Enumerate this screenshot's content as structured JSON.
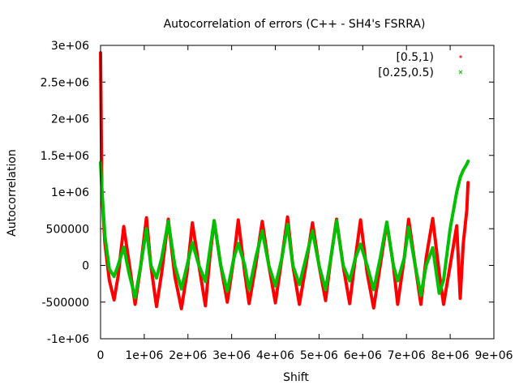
{
  "chart_data": {
    "type": "scatter",
    "title": "Autocorrelation of errors (C++ - SH4's FSRRA)",
    "xlabel": "Shift",
    "ylabel": "Autocorrelation",
    "xlim": [
      0,
      9000000
    ],
    "ylim": [
      -1000000,
      3000000
    ],
    "xticks": [
      0,
      1000000,
      2000000,
      3000000,
      4000000,
      5000000,
      6000000,
      7000000,
      8000000,
      9000000
    ],
    "xtick_labels": [
      "0",
      "1e+06",
      "2e+06",
      "3e+06",
      "4e+06",
      "5e+06",
      "6e+06",
      "7e+06",
      "8e+06",
      "9e+06"
    ],
    "yticks": [
      -1000000,
      -500000,
      0,
      500000,
      1000000,
      1500000,
      2000000,
      2500000,
      3000000
    ],
    "ytick_labels": [
      "-1e+06",
      "-500000",
      "0",
      "500000",
      "1e+06",
      "1.5e+06",
      "2e+06",
      "2.5e+06",
      "3e+06"
    ],
    "grid": false,
    "legend_position": "top-right",
    "series": [
      {
        "name": "[0.5,1)",
        "color": "#ff0000",
        "marker": "plus",
        "x": [
          0,
          30000,
          100000,
          200000,
          310000,
          400000,
          530000,
          650000,
          790000,
          920000,
          1050000,
          1150000,
          1280000,
          1400000,
          1550000,
          1700000,
          1850000,
          1980000,
          2100000,
          2250000,
          2400000,
          2500000,
          2600000,
          2750000,
          2900000,
          3050000,
          3150000,
          3300000,
          3400000,
          3550000,
          3700000,
          3850000,
          4000000,
          4150000,
          4280000,
          4400000,
          4550000,
          4700000,
          4850000,
          5000000,
          5150000,
          5270000,
          5400000,
          5550000,
          5700000,
          5830000,
          5950000,
          6100000,
          6250000,
          6400000,
          6550000,
          6700000,
          6800000,
          6950000,
          7050000,
          7200000,
          7330000,
          7450000,
          7600000,
          7750000,
          7850000,
          8000000,
          8150000,
          8230000,
          8300000,
          8380000,
          8410000
        ],
        "y": [
          2900000,
          1000000,
          300000,
          -200000,
          -470000,
          -150000,
          530000,
          50000,
          -530000,
          0,
          650000,
          0,
          -560000,
          -100000,
          630000,
          -150000,
          -590000,
          -100000,
          580000,
          0,
          -550000,
          100000,
          610000,
          0,
          -500000,
          100000,
          620000,
          -100000,
          -520000,
          0,
          600000,
          0,
          -510000,
          100000,
          660000,
          0,
          -530000,
          0,
          580000,
          0,
          -480000,
          100000,
          630000,
          0,
          -520000,
          100000,
          620000,
          -100000,
          -580000,
          0,
          580000,
          0,
          -530000,
          100000,
          630000,
          0,
          -530000,
          100000,
          640000,
          -100000,
          -530000,
          0,
          540000,
          -450000,
          300000,
          750000,
          1130000
        ]
      },
      {
        "name": "[0.25,0.5)",
        "color": "#00c000",
        "marker": "cross",
        "x": [
          0,
          30000,
          100000,
          200000,
          310000,
          400000,
          530000,
          650000,
          790000,
          920000,
          1050000,
          1150000,
          1280000,
          1400000,
          1550000,
          1700000,
          1850000,
          1980000,
          2100000,
          2250000,
          2400000,
          2500000,
          2600000,
          2750000,
          2900000,
          3050000,
          3150000,
          3300000,
          3400000,
          3550000,
          3700000,
          3850000,
          4000000,
          4150000,
          4280000,
          4400000,
          4550000,
          4700000,
          4850000,
          5000000,
          5150000,
          5270000,
          5400000,
          5550000,
          5700000,
          5830000,
          5950000,
          6100000,
          6250000,
          6400000,
          6550000,
          6700000,
          6800000,
          6950000,
          7050000,
          7200000,
          7330000,
          7450000,
          7600000,
          7750000,
          7850000,
          8000000,
          8150000,
          8230000,
          8300000,
          8380000,
          8410000
        ],
        "y": [
          1400000,
          1050000,
          400000,
          -50000,
          -150000,
          0,
          250000,
          -100000,
          -440000,
          0,
          500000,
          0,
          -170000,
          100000,
          600000,
          0,
          -320000,
          0,
          310000,
          0,
          -220000,
          200000,
          610000,
          0,
          -350000,
          100000,
          300000,
          0,
          -330000,
          100000,
          470000,
          0,
          -280000,
          100000,
          560000,
          0,
          -260000,
          100000,
          470000,
          0,
          -330000,
          100000,
          610000,
          0,
          -210000,
          100000,
          290000,
          0,
          -330000,
          100000,
          590000,
          0,
          -210000,
          100000,
          520000,
          0,
          -410000,
          0,
          240000,
          -380000,
          -200000,
          500000,
          1000000,
          1200000,
          1300000,
          1380000,
          1420000
        ]
      }
    ]
  }
}
